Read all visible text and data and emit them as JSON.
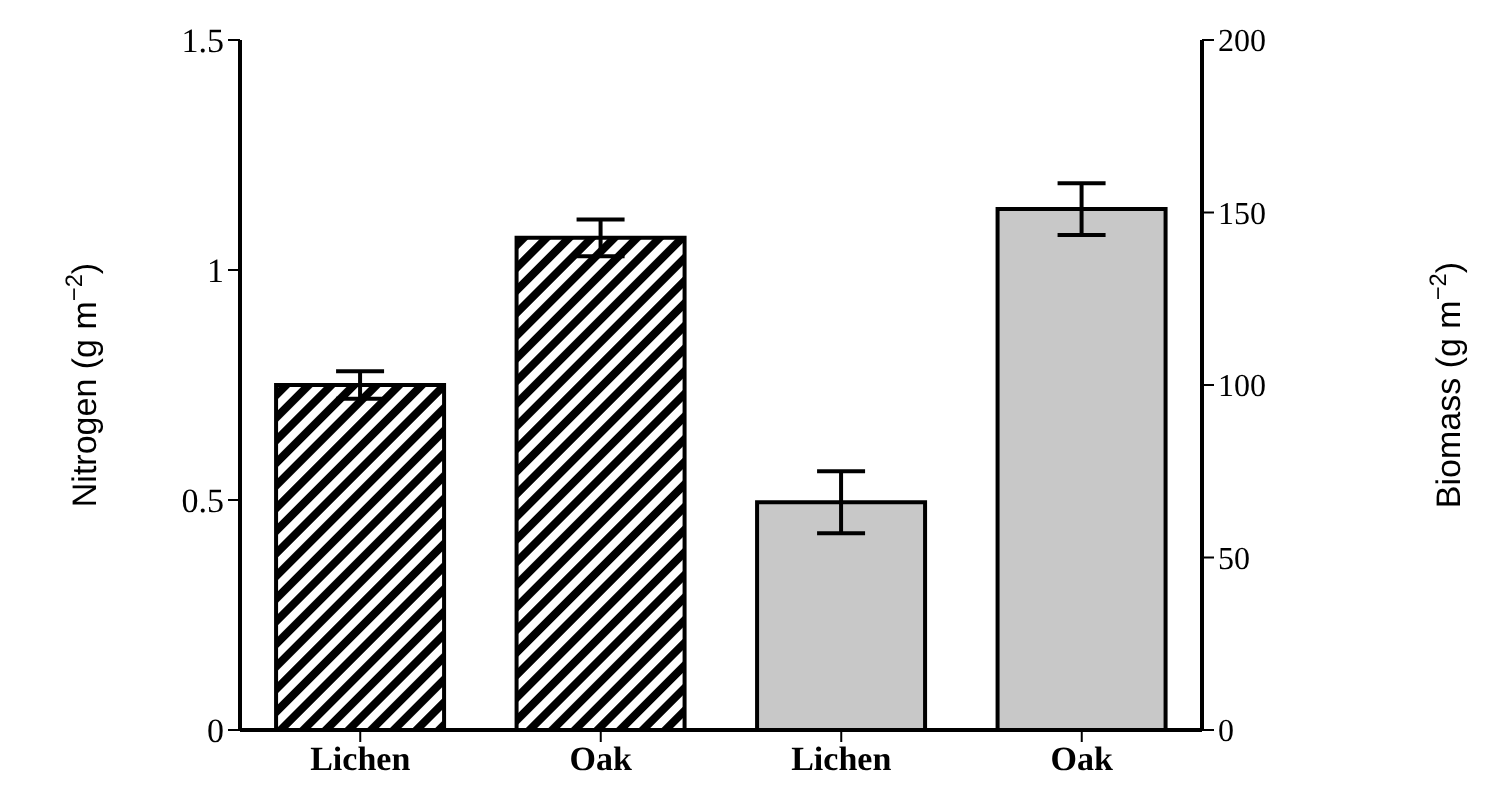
{
  "chart_data": {
    "type": "bar",
    "categories": [
      "Lichen",
      "Oak",
      "Lichen",
      "Oak"
    ],
    "ylabel": "Nitrogen (g m$^{−2}$)",
    "y2label": "Biomass (g m$^{−2}$)",
    "series": [
      {
        "color": "#000000",
        "values": [
          0.75,
          1.07,
          null,
          null
        ],
        "errors": [
          0.03,
          0.04,
          null,
          null
        ]
      },
      {
        "color": "#c8c8c8",
        "axis": "y2",
        "values": [
          null,
          null,
          66,
          151
        ],
        "errors": [
          null,
          null,
          9,
          7.5
        ]
      }
    ],
    "ylim": [
      0,
      1.5
    ],
    "yticks": [
      0,
      0.5,
      1,
      1.5
    ],
    "y2lim": [
      0,
      200
    ],
    "y2ticks": [
      0,
      50,
      100,
      150,
      200
    ]
  }
}
